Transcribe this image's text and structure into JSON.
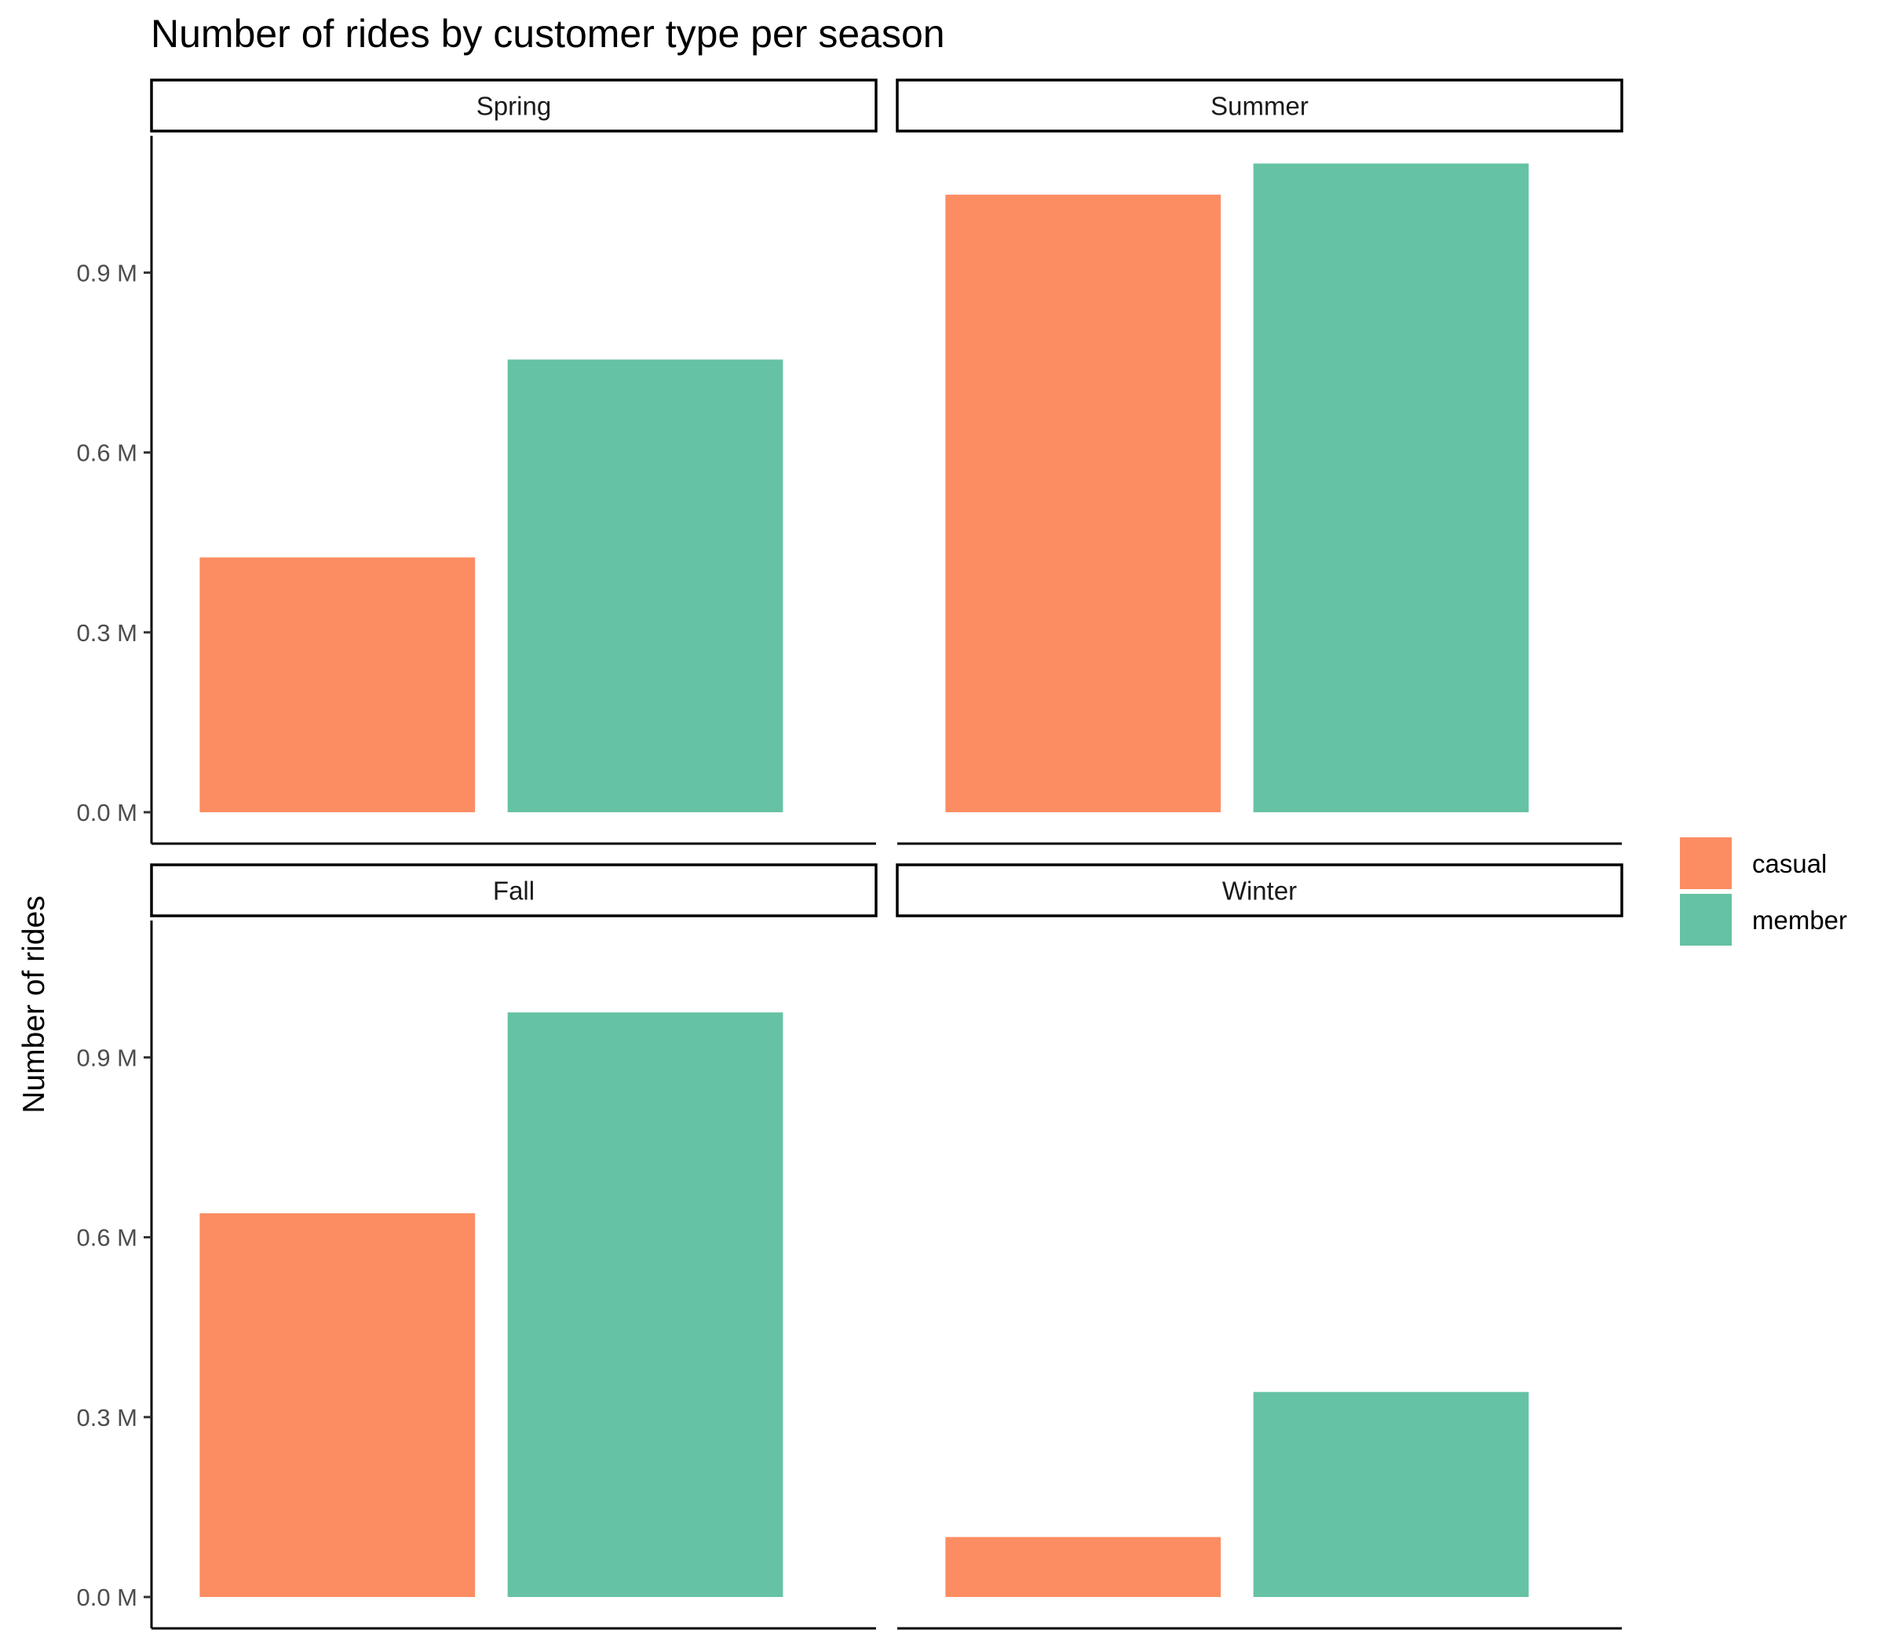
{
  "chart_data": {
    "type": "bar",
    "title": "Number of rides by customer type per season",
    "xlabel": "",
    "ylabel": "Number of rides",
    "ylim": [
      0,
      1.12
    ],
    "y_unit": "M",
    "y_ticks": [
      0.0,
      0.3,
      0.6,
      0.9
    ],
    "y_tick_labels": [
      "0.0 M",
      "0.3 M",
      "0.6 M",
      "0.9 M"
    ],
    "grid": false,
    "legend_position": "right",
    "categories": [
      "casual",
      "member"
    ],
    "series": [
      {
        "name": "casual",
        "color": "#FC8D62"
      },
      {
        "name": "member",
        "color": "#66C2A5"
      }
    ],
    "facets": [
      {
        "label": "Spring",
        "values": [
          0.425,
          0.755
        ]
      },
      {
        "label": "Summer",
        "values": [
          1.03,
          1.082
        ]
      },
      {
        "label": "Fall",
        "values": [
          0.64,
          0.975
        ]
      },
      {
        "label": "Winter",
        "values": [
          0.1,
          0.342
        ]
      }
    ]
  }
}
